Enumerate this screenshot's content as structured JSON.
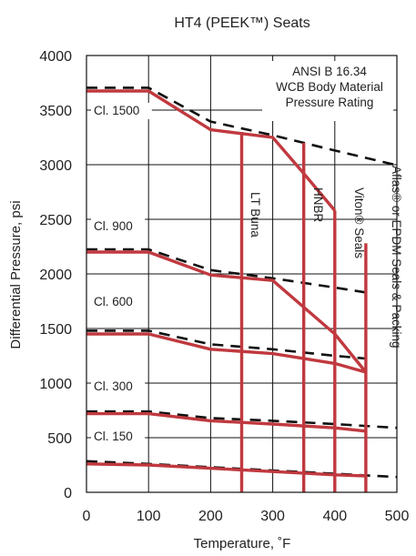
{
  "chart_data": {
    "type": "line",
    "title": "HT4 (PEEK™) Seats",
    "xlabel": "Temperature, ˚F",
    "ylabel": "Differential Pressure, psi",
    "xlim": [
      0,
      500
    ],
    "ylim": [
      0,
      4000
    ],
    "xticks": [
      0,
      100,
      200,
      300,
      400,
      500
    ],
    "yticks": [
      0,
      500,
      1000,
      1500,
      2000,
      2500,
      3000,
      3500,
      4000
    ],
    "grid": true,
    "annotation_lines": [
      "ANSI B 16.34",
      "WCB Body Material",
      "Pressure Rating"
    ],
    "body_rating_series": [
      {
        "label": "Cl. 1500",
        "points": [
          [
            0,
            3705
          ],
          [
            100,
            3705
          ],
          [
            200,
            3395
          ],
          [
            300,
            3270
          ],
          [
            400,
            3130
          ],
          [
            500,
            2995
          ]
        ]
      },
      {
        "label": "Cl. 900",
        "points": [
          [
            0,
            2225
          ],
          [
            100,
            2225
          ],
          [
            200,
            2035
          ],
          [
            300,
            1960
          ],
          [
            400,
            1875
          ],
          [
            450,
            1830
          ]
        ]
      },
      {
        "label": "Cl. 600",
        "points": [
          [
            0,
            1480
          ],
          [
            100,
            1480
          ],
          [
            200,
            1355
          ],
          [
            300,
            1310
          ],
          [
            400,
            1250
          ],
          [
            450,
            1225
          ]
        ]
      },
      {
        "label": "Cl. 300",
        "points": [
          [
            0,
            740
          ],
          [
            100,
            740
          ],
          [
            200,
            680
          ],
          [
            300,
            655
          ],
          [
            400,
            625
          ],
          [
            500,
            590
          ]
        ]
      },
      {
        "label": "Cl. 150",
        "points": [
          [
            0,
            285
          ],
          [
            100,
            260
          ],
          [
            200,
            230
          ],
          [
            300,
            200
          ],
          [
            400,
            170
          ],
          [
            500,
            140
          ]
        ]
      }
    ],
    "seat_rating_series": [
      {
        "class": "Cl. 1500",
        "points": [
          [
            0,
            3675
          ],
          [
            100,
            3675
          ],
          [
            200,
            3320
          ],
          [
            300,
            3250
          ],
          [
            350,
            2920
          ],
          [
            400,
            2580
          ]
        ]
      },
      {
        "class": "Cl. 900",
        "points": [
          [
            0,
            2200
          ],
          [
            100,
            2200
          ],
          [
            200,
            1990
          ],
          [
            300,
            1940
          ],
          [
            400,
            1450
          ],
          [
            450,
            1100
          ]
        ]
      },
      {
        "class": "Cl. 600",
        "points": [
          [
            0,
            1450
          ],
          [
            100,
            1450
          ],
          [
            200,
            1310
          ],
          [
            300,
            1270
          ],
          [
            400,
            1180
          ],
          [
            450,
            1100
          ]
        ]
      },
      {
        "class": "Cl. 300",
        "points": [
          [
            0,
            720
          ],
          [
            100,
            720
          ],
          [
            200,
            655
          ],
          [
            300,
            625
          ],
          [
            400,
            590
          ],
          [
            450,
            560
          ]
        ]
      },
      {
        "class": "Cl. 150",
        "points": [
          [
            0,
            260
          ],
          [
            100,
            250
          ],
          [
            200,
            220
          ],
          [
            300,
            190
          ],
          [
            400,
            160
          ],
          [
            450,
            150
          ]
        ]
      }
    ],
    "seal_limits": [
      {
        "label": "LT Buna",
        "x": 250,
        "top": 3300
      },
      {
        "label": "HNBR",
        "x": 350,
        "top": 3200
      },
      {
        "label": "Viton® Seals",
        "x": 400,
        "top": 2580
      },
      {
        "label": "Aflas® or EPDM Seals & Packing",
        "x": 450,
        "top": 2280
      }
    ],
    "colors": {
      "seat": "#c0393f",
      "body": "#111111",
      "grid": "#111111"
    }
  }
}
